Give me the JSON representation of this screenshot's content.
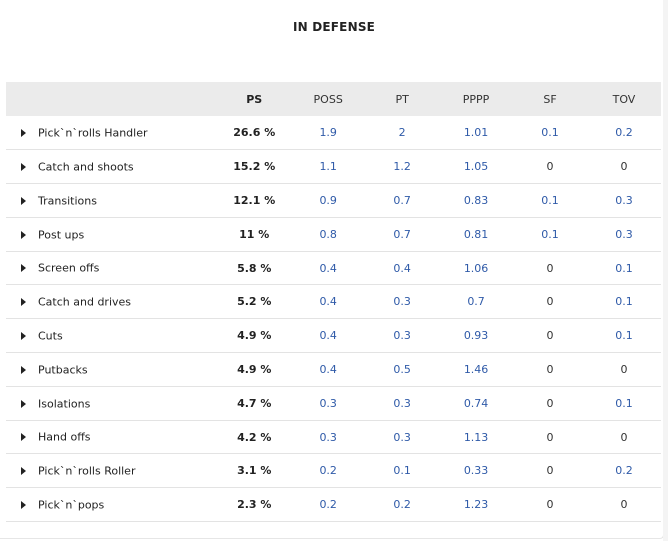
{
  "title": "IN DEFENSE",
  "columns": [
    "PS",
    "POSS",
    "PT",
    "PPPP",
    "SF",
    "TOV"
  ],
  "rows": [
    {
      "name": "Pick`n`rolls Handler",
      "ps": "26.6 %",
      "poss": "1.9",
      "pt": "2",
      "pppp": "1.01",
      "sf": "0.1",
      "tov": "0.2"
    },
    {
      "name": "Catch and shoots",
      "ps": "15.2 %",
      "poss": "1.1",
      "pt": "1.2",
      "pppp": "1.05",
      "sf": "0",
      "tov": "0"
    },
    {
      "name": "Transitions",
      "ps": "12.1 %",
      "poss": "0.9",
      "pt": "0.7",
      "pppp": "0.83",
      "sf": "0.1",
      "tov": "0.3"
    },
    {
      "name": "Post ups",
      "ps": "11 %",
      "poss": "0.8",
      "pt": "0.7",
      "pppp": "0.81",
      "sf": "0.1",
      "tov": "0.3"
    },
    {
      "name": "Screen offs",
      "ps": "5.8 %",
      "poss": "0.4",
      "pt": "0.4",
      "pppp": "1.06",
      "sf": "0",
      "tov": "0.1"
    },
    {
      "name": "Catch and drives",
      "ps": "5.2 %",
      "poss": "0.4",
      "pt": "0.3",
      "pppp": "0.7",
      "sf": "0",
      "tov": "0.1"
    },
    {
      "name": "Cuts",
      "ps": "4.9 %",
      "poss": "0.4",
      "pt": "0.3",
      "pppp": "0.93",
      "sf": "0",
      "tov": "0.1"
    },
    {
      "name": "Putbacks",
      "ps": "4.9 %",
      "poss": "0.4",
      "pt": "0.5",
      "pppp": "1.46",
      "sf": "0",
      "tov": "0"
    },
    {
      "name": "Isolations",
      "ps": "4.7 %",
      "poss": "0.3",
      "pt": "0.3",
      "pppp": "0.74",
      "sf": "0",
      "tov": "0.1"
    },
    {
      "name": "Hand offs",
      "ps": "4.2 %",
      "poss": "0.3",
      "pt": "0.3",
      "pppp": "1.13",
      "sf": "0",
      "tov": "0"
    },
    {
      "name": "Pick`n`rolls Roller",
      "ps": "3.1 %",
      "poss": "0.2",
      "pt": "0.1",
      "pppp": "0.33",
      "sf": "0",
      "tov": "0.2"
    },
    {
      "name": "Pick`n`pops",
      "ps": "2.3 %",
      "poss": "0.2",
      "pt": "0.2",
      "pppp": "1.23",
      "sf": "0",
      "tov": "0"
    }
  ]
}
